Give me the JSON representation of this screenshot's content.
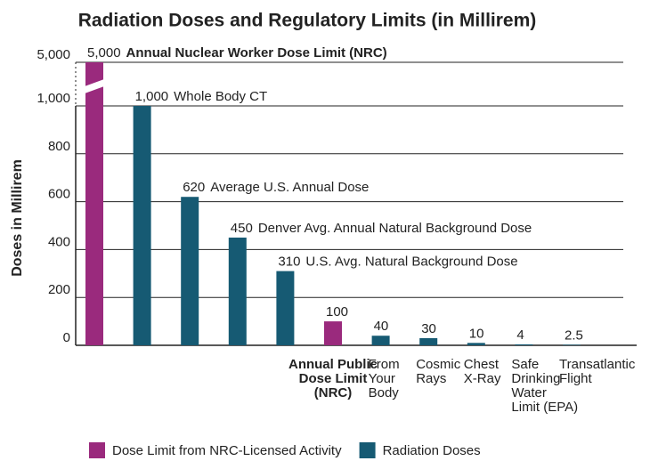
{
  "chart_data": {
    "type": "bar",
    "title": "Radiation Doses and Regulatory Limits (in Millirem)",
    "y_label": "Doses in Millirem",
    "categories": [
      null,
      null,
      null,
      null,
      null,
      "Annual Public\nDose Limit\n(NRC)",
      "From\nYour\nBody",
      "Cosmic\nRays",
      "Chest\nX-Ray",
      "Safe\nDrinking\nWater\nLimit (EPA)",
      "Transatlantic\nFlight"
    ],
    "values": [
      5000,
      1000,
      620,
      450,
      310,
      100,
      40,
      30,
      10,
      4,
      2.5
    ],
    "value_labels": [
      "5,000",
      "1,000",
      "620",
      "450",
      "310",
      "100",
      "40",
      "30",
      "10",
      "4",
      "2.5"
    ],
    "annotations": [
      "Annual Nuclear Worker Dose Limit (NRC)",
      "Whole Body CT",
      "Average U.S. Annual Dose",
      "Denver Avg. Annual Natural Background Dose",
      "U.S. Avg. Natural Background Dose",
      null,
      null,
      null,
      null,
      null,
      null
    ],
    "colors": [
      "#9a2a7d",
      "#165a73",
      "#165a73",
      "#165a73",
      "#165a73",
      "#9a2a7d",
      "#165a73",
      "#165a73",
      "#165a73",
      "#165a73",
      "#165a73"
    ],
    "legend": [
      {
        "name": "Dose Limit from NRC-Licensed Activity",
        "color": "#9a2a7d"
      },
      {
        "name": "Radiation Doses",
        "color": "#165a73"
      }
    ],
    "ylim": [
      0,
      5000
    ],
    "yticks": [
      0,
      200,
      400,
      600,
      800,
      {
        "value": 1000,
        "label": "1,000"
      },
      {
        "value": 5000,
        "label": "5,000"
      }
    ],
    "axis_break": true,
    "grid": true
  }
}
